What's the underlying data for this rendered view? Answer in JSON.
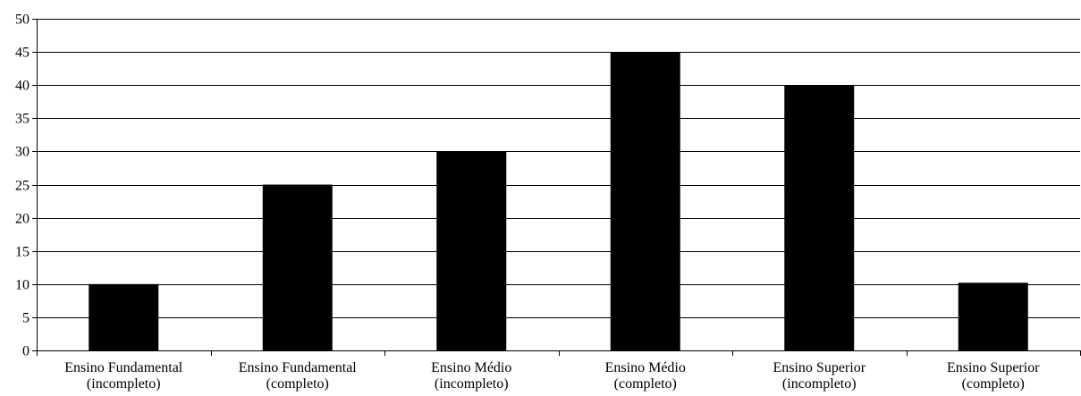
{
  "chart_data": {
    "type": "bar",
    "title": "",
    "xlabel": "",
    "ylabel": "",
    "ylim": [
      0,
      50
    ],
    "yticks": [
      0,
      5,
      10,
      15,
      20,
      25,
      30,
      35,
      40,
      45,
      50
    ],
    "grid": true,
    "legend": "none",
    "categories": [
      [
        "Ensino Fundamental",
        "(incompleto)"
      ],
      [
        "Ensino Fundamental",
        "(completo)"
      ],
      [
        "Ensino Médio",
        "(incompleto)"
      ],
      [
        "Ensino Médio",
        "(completo)"
      ],
      [
        "Ensino Superior",
        "(incompleto)"
      ],
      [
        "Ensino Superior",
        "(completo)"
      ]
    ],
    "values": [
      10,
      25,
      30,
      45,
      40,
      10.2
    ],
    "colors": {
      "bar": "#000000",
      "grid": "#000000",
      "background": "#ffffff"
    }
  }
}
